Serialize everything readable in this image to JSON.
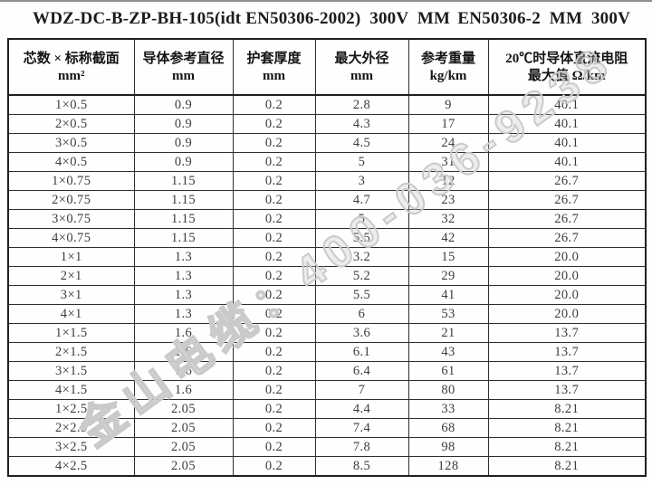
{
  "title": {
    "left": "WDZ-DC-B-ZP-BH-105(idt EN50306-2002)  300V  MM",
    "right": "EN50306-2  MM  300V"
  },
  "table": {
    "headers": [
      {
        "line1": "芯数 × 标称截面",
        "line2": "mm²"
      },
      {
        "line1": "导体参考直径",
        "line2": "mm"
      },
      {
        "line1": "护套厚度",
        "line2": "mm"
      },
      {
        "line1": "最大外径",
        "line2": "mm"
      },
      {
        "line1": "参考重量",
        "line2": "kg/km"
      },
      {
        "line1": "20℃时导体直流电阻",
        "line2": "最大值 Ω/km"
      }
    ],
    "rows": [
      [
        "1×0.5",
        "0.9",
        "0.2",
        "2.8",
        "9",
        "40.1"
      ],
      [
        "2×0.5",
        "0.9",
        "0.2",
        "4.3",
        "17",
        "40.1"
      ],
      [
        "3×0.5",
        "0.9",
        "0.2",
        "4.5",
        "24",
        "40.1"
      ],
      [
        "4×0.5",
        "0.9",
        "0.2",
        "5",
        "31",
        "40.1"
      ],
      [
        "1×0.75",
        "1.15",
        "0.2",
        "3",
        "12",
        "26.7"
      ],
      [
        "2×0.75",
        "1.15",
        "0.2",
        "4.7",
        "23",
        "26.7"
      ],
      [
        "3×0.75",
        "1.15",
        "0.2",
        "5",
        "32",
        "26.7"
      ],
      [
        "4×0.75",
        "1.15",
        "0.2",
        "5.5",
        "42",
        "26.7"
      ],
      [
        "1×1",
        "1.3",
        "0.2",
        "3.2",
        "15",
        "20.0"
      ],
      [
        "2×1",
        "1.3",
        "0.2",
        "5.2",
        "29",
        "20.0"
      ],
      [
        "3×1",
        "1.3",
        "0.2",
        "5.5",
        "41",
        "20.0"
      ],
      [
        "4×1",
        "1.3",
        "0.2",
        "6",
        "53",
        "20.0"
      ],
      [
        "1×1.5",
        "1.6",
        "0.2",
        "3.6",
        "21",
        "13.7"
      ],
      [
        "2×1.5",
        "1.6",
        "0.2",
        "6.1",
        "43",
        "13.7"
      ],
      [
        "3×1.5",
        "1.6",
        "0.2",
        "6.4",
        "61",
        "13.7"
      ],
      [
        "4×1.5",
        "1.6",
        "0.2",
        "7",
        "80",
        "13.7"
      ],
      [
        "1×2.5",
        "2.05",
        "0.2",
        "4.4",
        "33",
        "8.21"
      ],
      [
        "2×2.5",
        "2.05",
        "0.2",
        "7.4",
        "68",
        "8.21"
      ],
      [
        "3×2.5",
        "2.05",
        "0.2",
        "7.8",
        "98",
        "8.21"
      ],
      [
        "4×2.5",
        "2.05",
        "0.2",
        "8.5",
        "128",
        "8.21"
      ]
    ]
  },
  "watermark": {
    "text": "金山电缆：400-036-9238",
    "color": "#cacaca"
  },
  "colors": {
    "border": "#1f1f1f",
    "cell_text": "#3c3c3c",
    "title_text": "#1c1c1c"
  }
}
